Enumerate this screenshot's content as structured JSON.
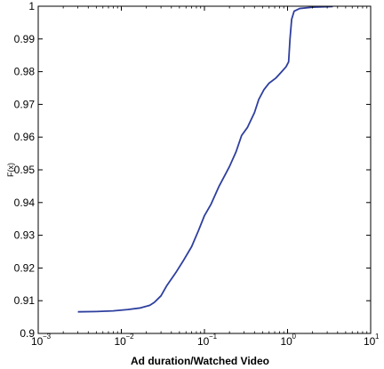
{
  "chart_data": {
    "type": "line",
    "xscale": "log",
    "xlim": [
      0.001,
      10
    ],
    "ylim": [
      0.9,
      1
    ],
    "xlabel": "Ad duration/Watched Video",
    "ylabel": "F(x)",
    "grid": false,
    "x_ticks": [
      {
        "base": "10",
        "exp": "−3",
        "value": 0.001
      },
      {
        "base": "10",
        "exp": "−2",
        "value": 0.01
      },
      {
        "base": "10",
        "exp": "−1",
        "value": 0.1
      },
      {
        "base": "10",
        "exp": "0",
        "value": 1
      },
      {
        "base": "10",
        "exp": "1",
        "value": 10
      }
    ],
    "y_ticks": [
      "0.9",
      "0.91",
      "0.92",
      "0.93",
      "0.94",
      "0.95",
      "0.96",
      "0.97",
      "0.98",
      "0.99",
      "1"
    ],
    "series": [
      {
        "color": "#2e3f9e",
        "points": [
          [
            0.003,
            0.9066
          ],
          [
            0.005,
            0.9067
          ],
          [
            0.008,
            0.9069
          ],
          [
            0.012,
            0.9073
          ],
          [
            0.017,
            0.9078
          ],
          [
            0.022,
            0.9086
          ],
          [
            0.025,
            0.9095
          ],
          [
            0.03,
            0.9115
          ],
          [
            0.035,
            0.9145
          ],
          [
            0.045,
            0.9185
          ],
          [
            0.055,
            0.922
          ],
          [
            0.07,
            0.9265
          ],
          [
            0.085,
            0.9315
          ],
          [
            0.1,
            0.936
          ],
          [
            0.12,
            0.9395
          ],
          [
            0.15,
            0.945
          ],
          [
            0.2,
            0.951
          ],
          [
            0.24,
            0.9555
          ],
          [
            0.28,
            0.9605
          ],
          [
            0.33,
            0.963
          ],
          [
            0.4,
            0.9675
          ],
          [
            0.45,
            0.9715
          ],
          [
            0.52,
            0.9745
          ],
          [
            0.6,
            0.9765
          ],
          [
            0.72,
            0.978
          ],
          [
            0.85,
            0.98
          ],
          [
            0.96,
            0.9815
          ],
          [
            1.03,
            0.983
          ],
          [
            1.07,
            0.99
          ],
          [
            1.12,
            0.996
          ],
          [
            1.2,
            0.9985
          ],
          [
            1.4,
            0.9993
          ],
          [
            2.0,
            0.9997
          ],
          [
            3.5,
            0.9999
          ]
        ]
      }
    ]
  }
}
